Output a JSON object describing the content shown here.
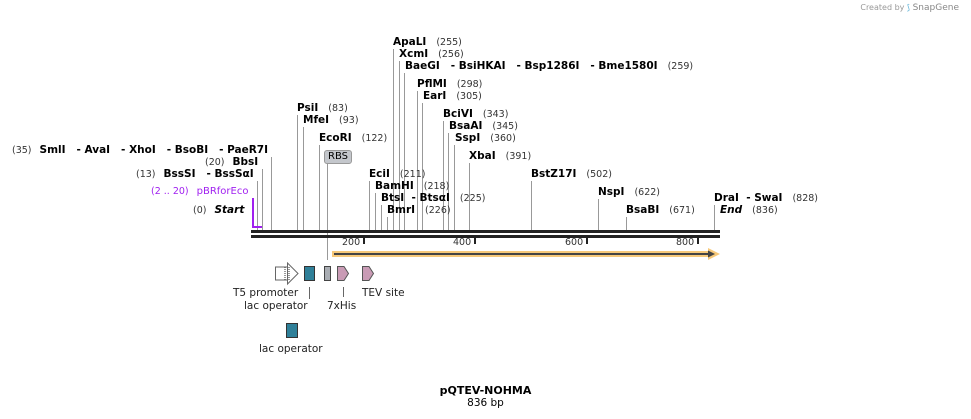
{
  "credit": "Created by",
  "brand": "SnapGene",
  "title": "pQTEV-NOHMA",
  "length": "836 bp",
  "enzymes": [
    {
      "name": "ApaLI",
      "pos": "(255)"
    },
    {
      "name": "XcmI",
      "pos": "(256)"
    },
    {
      "name": "BaeGI   - BsiHKAI   - Bsp1286I   - Bme1580I",
      "pos": "(259)"
    },
    {
      "name": "PflMI",
      "pos": "(298)"
    },
    {
      "name": "EarI",
      "pos": "(305)"
    },
    {
      "name": "BciVI",
      "pos": "(343)"
    },
    {
      "name": "BsaAI",
      "pos": "(345)"
    },
    {
      "name": "SspI",
      "pos": "(360)"
    },
    {
      "name": "XbaI",
      "pos": "(391)"
    },
    {
      "name": "BstZ17I",
      "pos": "(502)"
    },
    {
      "name": "NspI",
      "pos": "(622)"
    },
    {
      "name": "BsaBI",
      "pos": "(671)"
    },
    {
      "name": "DraI  - SwaI",
      "pos": "(828)"
    },
    {
      "name": "PsiI",
      "pos": "(83)"
    },
    {
      "name": "MfeI",
      "pos": "(93)"
    },
    {
      "name": "EcoRI",
      "pos": "(122)"
    },
    {
      "name": "EciI",
      "pos": "(211)"
    },
    {
      "name": "BamHI",
      "pos": "(218)"
    },
    {
      "name": "BtsI  - BtsαI",
      "pos": "(225)"
    },
    {
      "name": "BmrI",
      "pos": "(226)"
    },
    {
      "name": "SmlI   - AvaI   - XhoI   - BsoBI   - PaeR7I",
      "pos": "(35)"
    },
    {
      "name": "BbsI",
      "pos": "(20)"
    },
    {
      "name": "BssSI   - BssSαI",
      "pos": "(13)"
    }
  ],
  "start": {
    "name": "Start",
    "pos": "(0)"
  },
  "end": {
    "name": "End",
    "pos": "(836)"
  },
  "primer": {
    "name": "pBRforEco",
    "pos": "(2 .. 20)",
    "color": "#a020f0"
  },
  "rbs_label": "RBS",
  "ticks": [
    "200",
    "400",
    "600",
    "800"
  ],
  "features": {
    "t5": "T5 promoter",
    "lac1": "lac operator",
    "his": "7xHis",
    "tev": "TEV site",
    "lac2": "lac operator"
  },
  "colors": {
    "orf": "#f7c97a",
    "lac": "#2f8099",
    "tag": "#c99bb5",
    "rbs": "#a9adb3"
  }
}
